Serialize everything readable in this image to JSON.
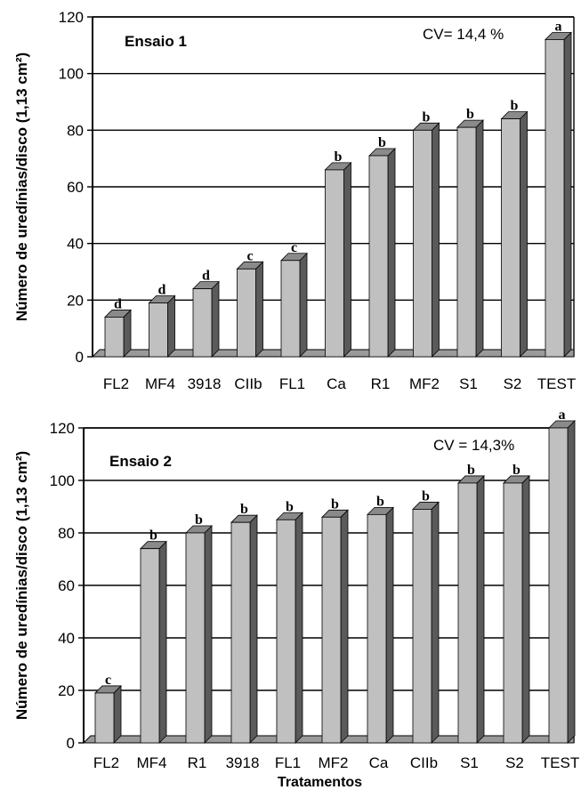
{
  "chart_data": [
    {
      "type": "bar",
      "title": "Ensaio 1",
      "annotation": "CV= 14,4 %",
      "ylabel": "Número de uredínias/disco (1,13 cm²)",
      "xlabel": "",
      "ylim": [
        0,
        120
      ],
      "yticks": [
        "0",
        "20",
        "40",
        "60",
        "80",
        "100",
        "120"
      ],
      "grid": true,
      "categories": [
        "FL2",
        "MF4",
        "3918",
        "CIIb",
        "FL1",
        "Ca",
        "R1",
        "MF2",
        "S1",
        "S2",
        "TEST"
      ],
      "values": [
        14,
        19,
        24,
        31,
        34,
        66,
        71,
        80,
        81,
        84,
        112
      ],
      "letters": [
        "d",
        "d",
        "d",
        "c",
        "c",
        "b",
        "b",
        "b",
        "b",
        "b",
        "a"
      ]
    },
    {
      "type": "bar",
      "title": "Ensaio 2",
      "annotation": "CV = 14,3%",
      "ylabel": "Número de uredínias/disco (1,13 cm²)",
      "xlabel": "Tratamentos",
      "ylim": [
        0,
        120
      ],
      "yticks": [
        "0",
        "20",
        "40",
        "60",
        "80",
        "100",
        "120"
      ],
      "grid": true,
      "categories": [
        "FL2",
        "MF4",
        "R1",
        "3918",
        "FL1",
        "MF2",
        "Ca",
        "CIIb",
        "S1",
        "S2",
        "TEST"
      ],
      "values": [
        19,
        74,
        80,
        84,
        85,
        86,
        87,
        89,
        99,
        99,
        120
      ],
      "letters": [
        "c",
        "b",
        "b",
        "b",
        "b",
        "b",
        "b",
        "b",
        "b",
        "b",
        "a"
      ]
    }
  ],
  "colors": {
    "bar_face": "#c0c0c0",
    "bar_top": "#8a8a8a",
    "bar_side": "#5a5a5a",
    "axis": "#000000",
    "grid": "#000000"
  }
}
